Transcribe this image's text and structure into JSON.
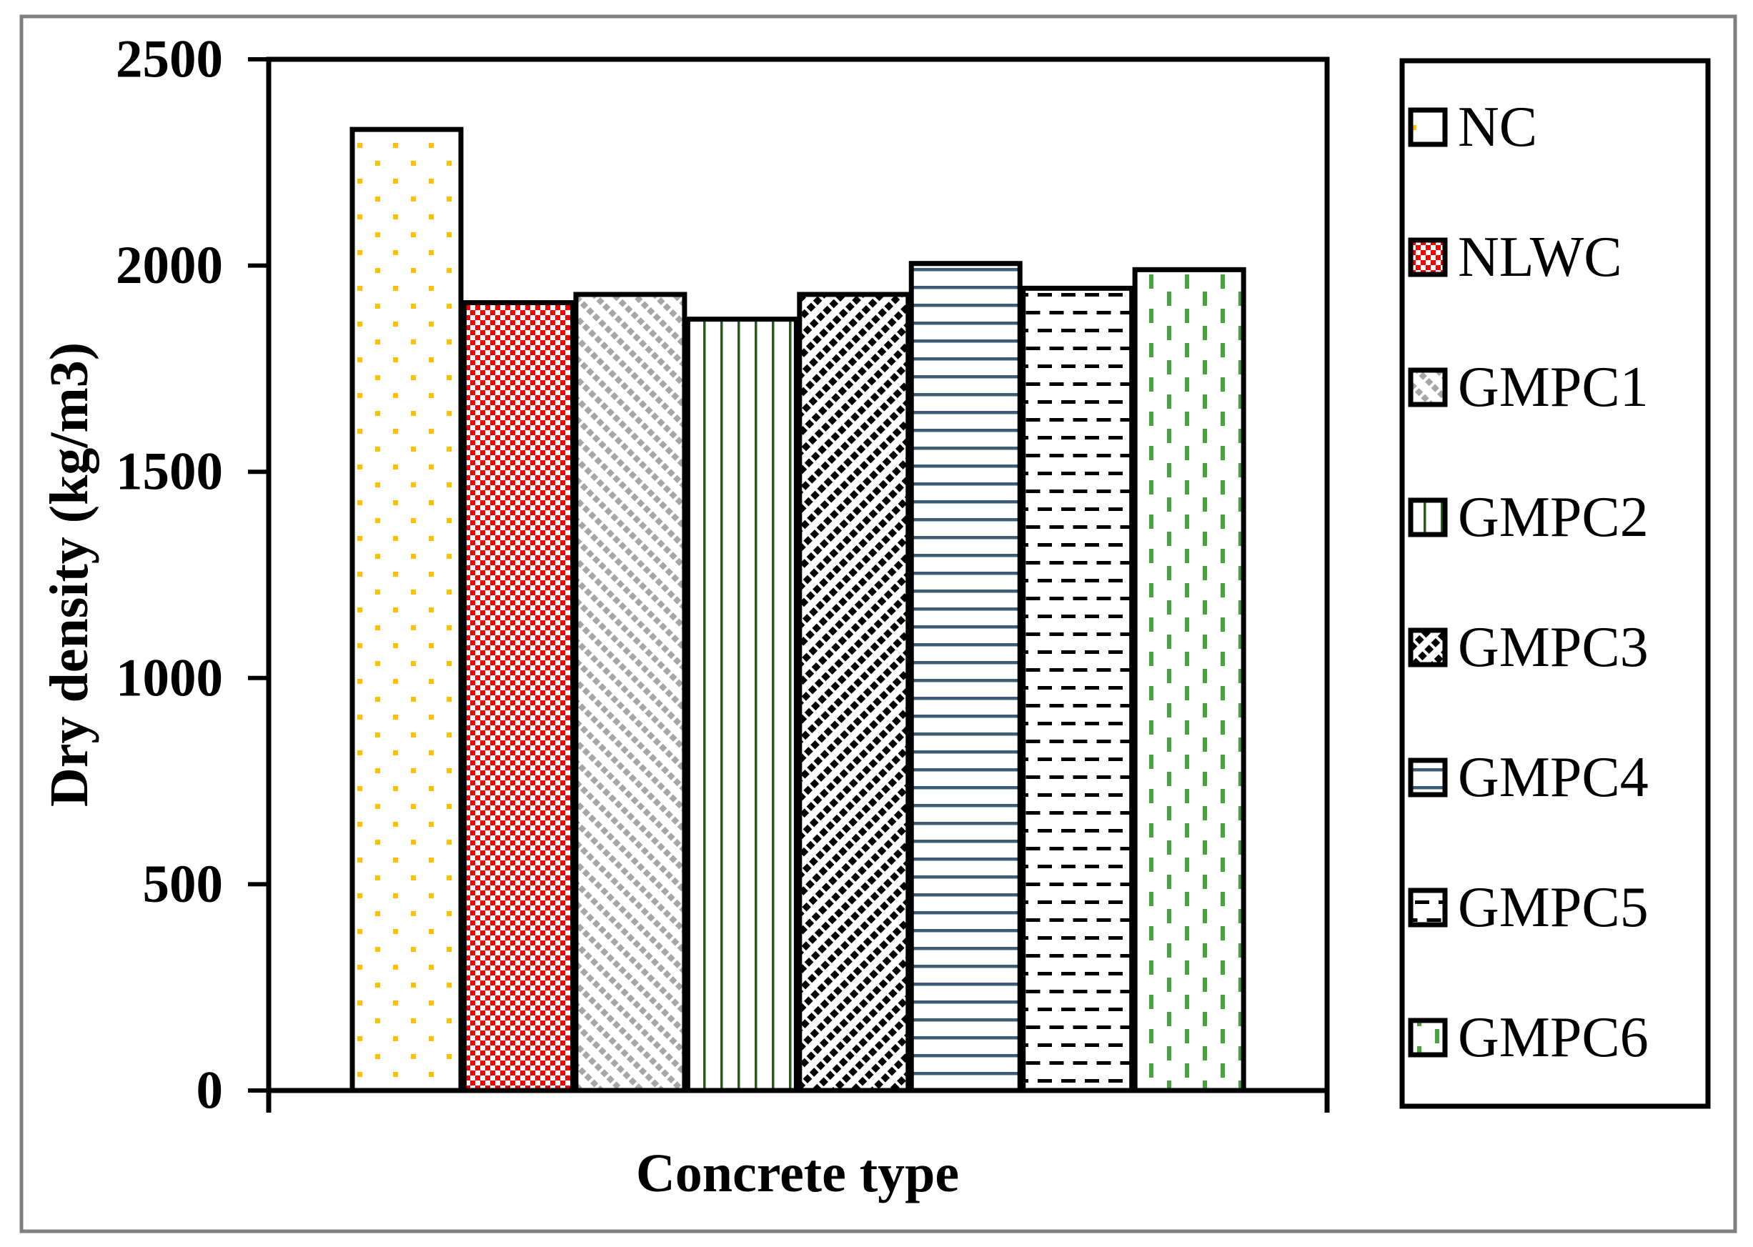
{
  "figure": {
    "outer_border_color": "#7F7F7F",
    "background_color": "#FFFFFF",
    "axis_color": "#000000"
  },
  "chart_data": {
    "type": "bar",
    "title": "",
    "xlabel": "Concrete type",
    "ylabel": "Dry density (kg/m3)",
    "ylim": [
      0,
      2500
    ],
    "yticks": [
      0,
      500,
      1000,
      1500,
      2000,
      2500
    ],
    "grid": false,
    "legend_position": "right",
    "categories": [
      "NC",
      "NLWC",
      "GMPC1",
      "GMPC2",
      "GMPC3",
      "GMPC4",
      "GMPC5",
      "GMPC6"
    ],
    "values": [
      2330,
      1910,
      1930,
      1870,
      1930,
      2005,
      1945,
      1990
    ],
    "series_styles": [
      {
        "label": "NC",
        "pattern": "dots",
        "color": "#FFC000"
      },
      {
        "label": "NLWC",
        "pattern": "checker",
        "color": "#F40000"
      },
      {
        "label": "GMPC1",
        "pattern": "diag-down-dash",
        "color": "#A6A6A6"
      },
      {
        "label": "GMPC2",
        "pattern": "vlines",
        "color": "#2B5A1E"
      },
      {
        "label": "GMPC3",
        "pattern": "diag-up-dash",
        "color": "#000000"
      },
      {
        "label": "GMPC4",
        "pattern": "hlines",
        "color": "#3E5C76"
      },
      {
        "label": "GMPC5",
        "pattern": "hdash",
        "color": "#000000"
      },
      {
        "label": "GMPC6",
        "pattern": "vdash",
        "color": "#45A63E"
      }
    ]
  }
}
